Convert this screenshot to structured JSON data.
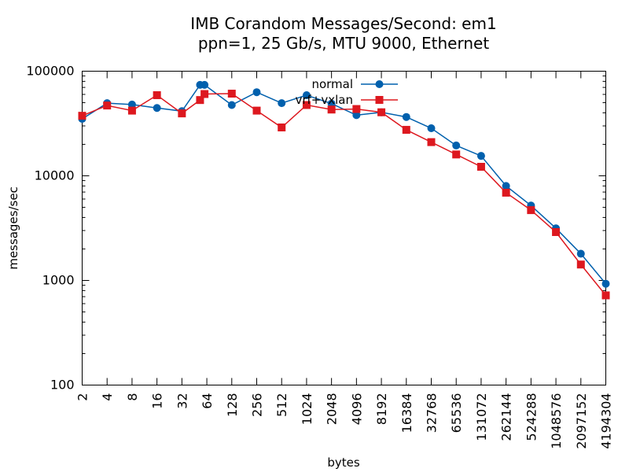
{
  "chart_data": {
    "type": "line",
    "title": [
      "IMB Corandom Messages/Second: em1",
      "ppn=1, 25 Gb/s, MTU 9000, Ethernet"
    ],
    "xlabel": "bytes",
    "ylabel": "messages/sec",
    "x_scale": "log2",
    "y_scale": "log10",
    "xlim": [
      2,
      4194304
    ],
    "ylim": [
      100,
      100000
    ],
    "x_ticks": [
      "2",
      "4",
      "8",
      "16",
      "32",
      "64",
      "128",
      "256",
      "512",
      "1024",
      "2048",
      "4096",
      "8192",
      "16384",
      "32768",
      "65536",
      "131072",
      "262144",
      "524288",
      "1048576",
      "2097152",
      "4194304"
    ],
    "y_ticks": [
      "100",
      "1000",
      "10000",
      "100000"
    ],
    "grid": false,
    "legend_position": "top-center",
    "series": [
      {
        "name": "normal",
        "color": "#0060ad",
        "marker": "circle",
        "points": [
          [
            2,
            35000
          ],
          [
            4,
            49500
          ],
          [
            8,
            48000
          ],
          [
            16,
            44500
          ],
          [
            32,
            41500
          ],
          [
            53,
            74000
          ],
          [
            60,
            74000
          ],
          [
            128,
            47500
          ],
          [
            256,
            63000
          ],
          [
            512,
            49500
          ],
          [
            1024,
            59000
          ],
          [
            2048,
            49000
          ],
          [
            4096,
            38000
          ],
          [
            8192,
            40500
          ],
          [
            16384,
            36500
          ],
          [
            32768,
            28500
          ],
          [
            65536,
            19500
          ],
          [
            131072,
            15500
          ],
          [
            262144,
            8000
          ],
          [
            524288,
            5200
          ],
          [
            1048576,
            3150
          ],
          [
            2097152,
            1800
          ],
          [
            4194304,
            930
          ]
        ]
      },
      {
        "name": "vrf+vxlan",
        "color": "#dd181f",
        "marker": "square",
        "points": [
          [
            2,
            37500
          ],
          [
            4,
            47000
          ],
          [
            8,
            42000
          ],
          [
            16,
            59000
          ],
          [
            32,
            39500
          ],
          [
            53,
            53000
          ],
          [
            60,
            60500
          ],
          [
            128,
            61000
          ],
          [
            256,
            42000
          ],
          [
            512,
            29000
          ],
          [
            1024,
            47500
          ],
          [
            2048,
            43000
          ],
          [
            4096,
            43500
          ],
          [
            8192,
            40500
          ],
          [
            16384,
            27500
          ],
          [
            32768,
            21000
          ],
          [
            65536,
            16000
          ],
          [
            131072,
            12200
          ],
          [
            262144,
            6900
          ],
          [
            524288,
            4700
          ],
          [
            1048576,
            2900
          ],
          [
            2097152,
            1420
          ],
          [
            4194304,
            720
          ]
        ]
      }
    ]
  }
}
